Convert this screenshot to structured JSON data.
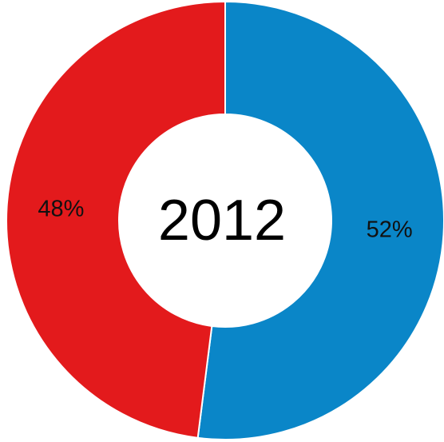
{
  "chart_data": {
    "type": "pie",
    "center_label": "2012",
    "categories": [
      "",
      ""
    ],
    "values": [
      52,
      48
    ],
    "labels": [
      "52%",
      "48%"
    ],
    "colors": [
      "#0a86c8",
      "#e31a1c"
    ],
    "grid": false,
    "legend": "none"
  }
}
